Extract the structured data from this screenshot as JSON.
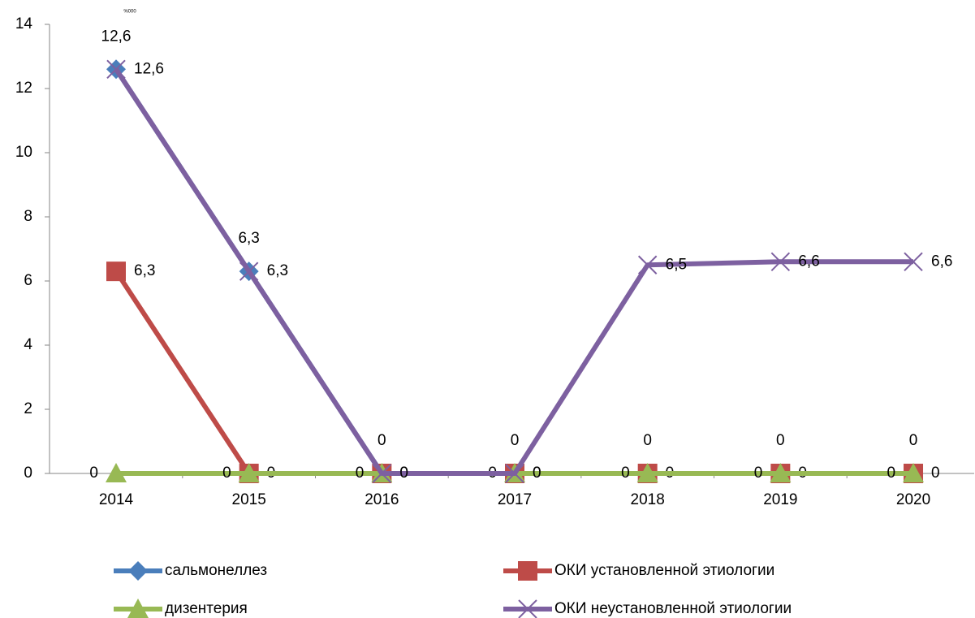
{
  "chart_data": {
    "type": "line",
    "y_label": "%000",
    "categories": [
      "2014",
      "2015",
      "2016",
      "2017",
      "2018",
      "2019",
      "2020"
    ],
    "ylim": [
      0,
      14
    ],
    "yticks": [
      0,
      2,
      4,
      6,
      8,
      10,
      12,
      14
    ],
    "legend": "bottom",
    "series": [
      {
        "name": "сальмонеллез",
        "color": "#4a7ebb",
        "marker": "diamond",
        "values": [
          12.6,
          6.3,
          0,
          0,
          0,
          0,
          0
        ],
        "value_labels": [
          "12,6",
          "6,3",
          "0",
          "0",
          "0",
          "0",
          "0"
        ]
      },
      {
        "name": "ОКИ установленной этиологии",
        "color": "#be4b48",
        "marker": "square",
        "values": [
          6.3,
          0,
          0,
          0,
          0,
          0,
          0
        ],
        "value_labels": [
          "6,3",
          "0",
          "0",
          "0",
          "0",
          "0",
          "0"
        ]
      },
      {
        "name": "дизентерия",
        "color": "#98b954",
        "marker": "triangle",
        "values": [
          0,
          0,
          0,
          0,
          0,
          0,
          0
        ],
        "value_labels": [
          "0",
          "0",
          "0",
          "0",
          "0",
          "0",
          "0"
        ]
      },
      {
        "name": "ОКИ неустановленной этиологии",
        "color": "#7d60a0",
        "marker": "x",
        "values": [
          12.6,
          6.3,
          0,
          0,
          6.5,
          6.6,
          6.6
        ],
        "value_labels": [
          "12,6",
          "6,3",
          "0",
          "0",
          "6,5",
          "6,6",
          "6,6"
        ]
      }
    ]
  }
}
